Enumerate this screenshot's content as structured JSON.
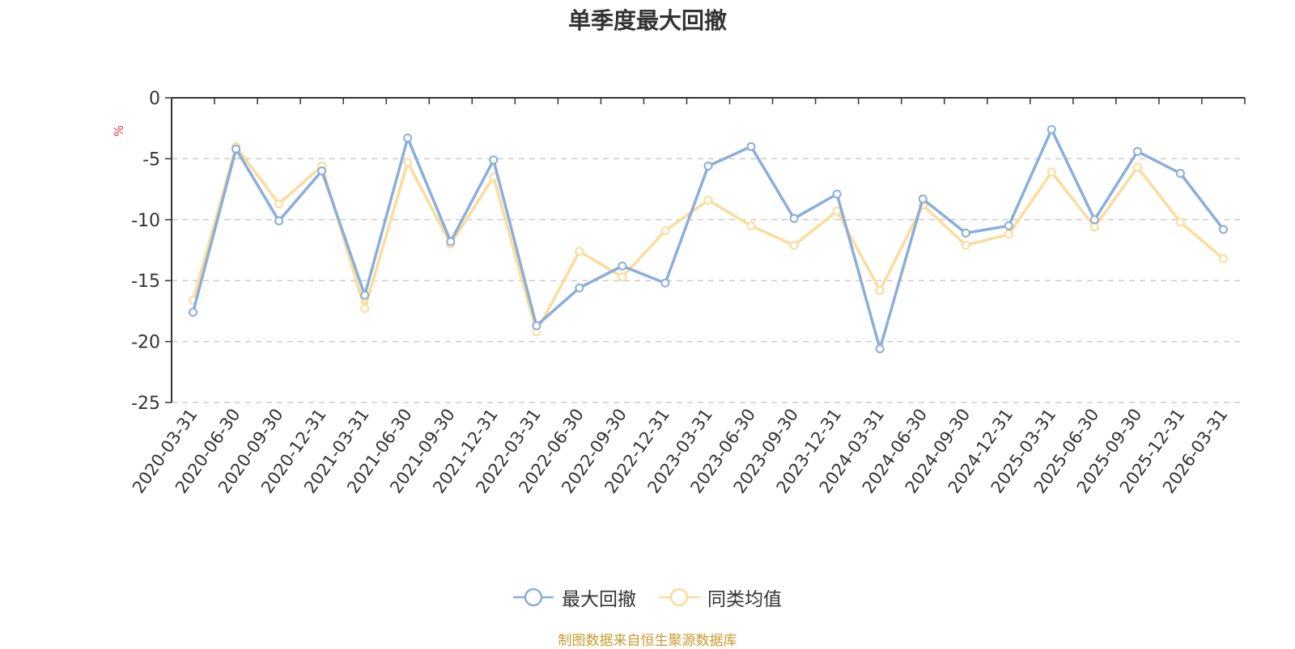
{
  "colors": {
    "series_1": "#8aaedb",
    "series_2": "#fbdc9a",
    "axis": "#333333",
    "grid": "#cccccc",
    "unit": "#e53935",
    "source": "#c89b2c"
  },
  "source_note": "制图数据来自恒生聚源数据库",
  "chart_data": {
    "type": "line",
    "title": "单季度最大回撤",
    "ylabel": "%",
    "ylim": [
      -25,
      0
    ],
    "yticks": [
      0,
      -5,
      -10,
      -15,
      -20,
      -25
    ],
    "grid": true,
    "legend_position": "bottom-center",
    "x": [
      "2020-03-31",
      "2020-06-30",
      "2020-09-30",
      "2020-12-31",
      "2021-03-31",
      "2021-06-30",
      "2021-09-30",
      "2021-12-31",
      "2022-03-31",
      "2022-06-30",
      "2022-09-30",
      "2022-12-31",
      "2023-03-31",
      "2023-06-30",
      "2023-09-30",
      "2023-12-31",
      "2024-03-31",
      "2024-06-30",
      "2024-09-30",
      "2024-12-31",
      "2025-03-31",
      "2025-06-30",
      "2025-09-30",
      "2025-12-31",
      "2026-03-31"
    ],
    "series": [
      {
        "name": "最大回撤",
        "values": [
          -17.6,
          -4.2,
          -10.1,
          -6.0,
          -16.2,
          -3.3,
          -11.8,
          -5.1,
          -18.7,
          -15.6,
          -13.8,
          -15.2,
          -5.6,
          -4.0,
          -9.9,
          -7.9,
          -20.6,
          -8.3,
          -11.1,
          -10.5,
          -2.6,
          -10.0,
          -4.4,
          -6.2,
          -10.8
        ]
      },
      {
        "name": "同类均值",
        "values": [
          -16.6,
          -4.0,
          -8.7,
          -5.6,
          -17.3,
          -5.3,
          -12.0,
          -6.5,
          -19.2,
          -12.6,
          -14.7,
          -10.9,
          -8.4,
          -10.5,
          -12.1,
          -9.3,
          -15.8,
          -8.8,
          -12.1,
          -11.2,
          -6.1,
          -10.6,
          -5.7,
          -10.2,
          -13.2
        ]
      }
    ]
  }
}
